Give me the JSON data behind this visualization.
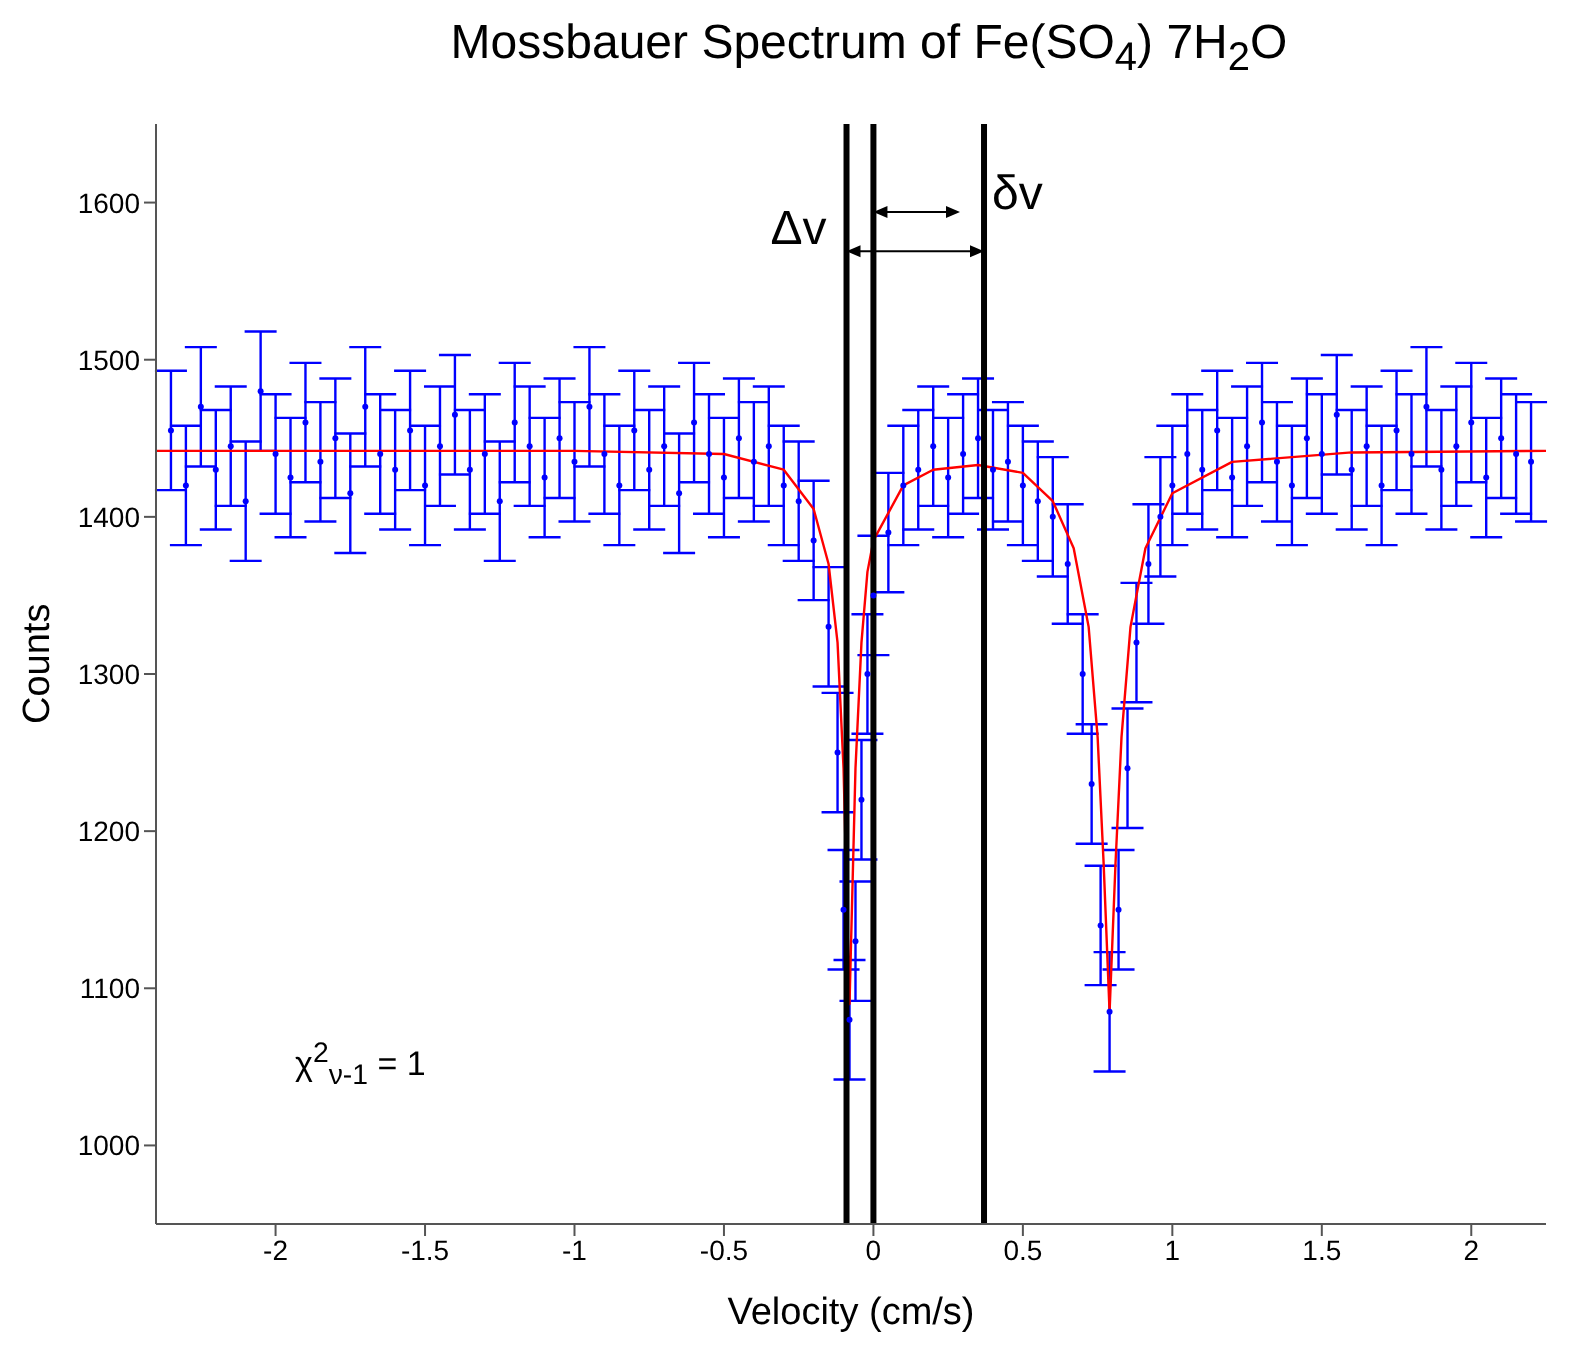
{
  "chart_data": {
    "type": "scatter",
    "title": "Mossbauer Spectrum of Fe(SO$_{4}$) 7H$_{2}$O",
    "xlabel": "Velocity (cm/s)",
    "ylabel": "Counts",
    "xlim": [
      -2.4,
      2.25
    ],
    "xticks": [
      -2,
      -1.5,
      -1,
      -0.5,
      0,
      0.5,
      1,
      1.5,
      2
    ],
    "ylim": [
      950,
      1650
    ],
    "yticks": [
      1000,
      1100,
      1200,
      1300,
      1400,
      1500,
      1600
    ],
    "series": [
      {
        "color": "#0000ff",
        "x": [
          -2.35,
          -2.3,
          -2.25,
          -2.2,
          -2.15,
          -2.1,
          -2.05,
          -2.0,
          -1.95,
          -1.9,
          -1.85,
          -1.8,
          -1.75,
          -1.7,
          -1.65,
          -1.6,
          -1.55,
          -1.5,
          -1.45,
          -1.4,
          -1.35,
          -1.3,
          -1.25,
          -1.2,
          -1.15,
          -1.1,
          -1.05,
          -1.0,
          -0.95,
          -0.9,
          -0.85,
          -0.8,
          -0.75,
          -0.7,
          -0.65,
          -0.6,
          -0.55,
          -0.5,
          -0.45,
          -0.4,
          -0.35,
          -0.3,
          -0.25,
          -0.2,
          -0.15,
          -0.12,
          -0.1,
          -0.08,
          -0.06,
          -0.04,
          -0.02,
          0.0,
          0.05,
          0.1,
          0.15,
          0.2,
          0.25,
          0.3,
          0.35,
          0.4,
          0.45,
          0.5,
          0.55,
          0.6,
          0.65,
          0.7,
          0.73,
          0.76,
          0.79,
          0.82,
          0.85,
          0.88,
          0.92,
          0.96,
          1.0,
          1.05,
          1.1,
          1.15,
          1.2,
          1.25,
          1.3,
          1.35,
          1.4,
          1.45,
          1.5,
          1.55,
          1.6,
          1.65,
          1.7,
          1.75,
          1.8,
          1.85,
          1.9,
          1.95,
          2.0,
          2.05,
          2.1,
          2.15,
          2.2
        ],
        "values": [
          1455,
          1420,
          1470,
          1430,
          1445,
          1410,
          1480,
          1440,
          1425,
          1460,
          1435,
          1450,
          1415,
          1470,
          1440,
          1430,
          1455,
          1420,
          1445,
          1465,
          1430,
          1440,
          1410,
          1460,
          1445,
          1425,
          1450,
          1435,
          1470,
          1440,
          1420,
          1455,
          1430,
          1445,
          1415,
          1460,
          1440,
          1425,
          1450,
          1435,
          1445,
          1420,
          1410,
          1385,
          1330,
          1250,
          1150,
          1080,
          1130,
          1220,
          1300,
          1350,
          1390,
          1420,
          1430,
          1445,
          1425,
          1440,
          1450,
          1430,
          1435,
          1420,
          1410,
          1400,
          1370,
          1300,
          1230,
          1140,
          1085,
          1150,
          1240,
          1320,
          1370,
          1400,
          1420,
          1440,
          1430,
          1455,
          1425,
          1445,
          1460,
          1435,
          1420,
          1450,
          1440,
          1465,
          1430,
          1445,
          1420,
          1455,
          1440,
          1470,
          1430,
          1445,
          1460,
          1425,
          1450,
          1440,
          1435
        ],
        "errors": [
          38,
          38,
          38,
          38,
          38,
          38,
          38,
          38,
          38,
          38,
          38,
          38,
          38,
          38,
          38,
          38,
          38,
          38,
          38,
          38,
          38,
          38,
          38,
          38,
          38,
          38,
          38,
          38,
          38,
          38,
          38,
          38,
          38,
          38,
          38,
          38,
          38,
          38,
          38,
          38,
          38,
          38,
          38,
          38,
          38,
          38,
          38,
          38,
          38,
          38,
          38,
          38,
          38,
          38,
          38,
          38,
          38,
          38,
          38,
          38,
          38,
          38,
          38,
          38,
          38,
          38,
          38,
          38,
          38,
          38,
          38,
          38,
          38,
          38,
          38,
          38,
          38,
          38,
          38,
          38,
          38,
          38,
          38,
          38,
          38,
          38,
          38,
          38,
          38,
          38,
          38,
          38,
          38,
          38,
          38,
          38,
          38,
          38,
          38
        ]
      },
      {
        "type": "line",
        "color": "#ff0000",
        "marker": "none",
        "x": [
          -2.4,
          -1.0,
          -0.5,
          -0.3,
          -0.2,
          -0.15,
          -0.12,
          -0.1,
          -0.08,
          -0.06,
          -0.04,
          -0.02,
          0.0,
          0.1,
          0.2,
          0.35,
          0.5,
          0.6,
          0.67,
          0.72,
          0.75,
          0.77,
          0.79,
          0.81,
          0.83,
          0.86,
          0.91,
          1.0,
          1.2,
          1.6,
          2.25
        ],
        "values": [
          1442,
          1442,
          1440,
          1430,
          1405,
          1370,
          1320,
          1240,
          1090,
          1240,
          1320,
          1365,
          1385,
          1420,
          1430,
          1433,
          1428,
          1410,
          1380,
          1330,
          1260,
          1180,
          1085,
          1180,
          1260,
          1330,
          1380,
          1415,
          1435,
          1441,
          1442
        ]
      }
    ],
    "ref_lines": [
      {
        "axis": "x",
        "value": -0.09,
        "color": "#000000"
      },
      {
        "axis": "x",
        "value": 0.0,
        "color": "#000000"
      },
      {
        "axis": "x",
        "value": 0.37,
        "color": "#000000"
      }
    ],
    "annotations": [
      {
        "text": "Δv",
        "x": -0.09,
        "y": 1569
      },
      {
        "text": "δv",
        "x": 0.37,
        "y": 1594
      },
      "χ$^{2}$$_{ν-1}$ = 1"
    ]
  }
}
